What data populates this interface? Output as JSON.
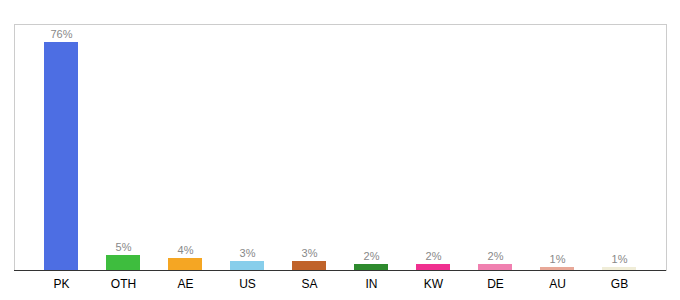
{
  "chart_data": {
    "type": "bar",
    "categories": [
      "PK",
      "OTH",
      "AE",
      "US",
      "SA",
      "IN",
      "KW",
      "DE",
      "AU",
      "GB"
    ],
    "values": [
      76,
      5,
      4,
      3,
      3,
      2,
      2,
      2,
      1,
      1
    ],
    "value_labels": [
      "76%",
      "5%",
      "4%",
      "3%",
      "3%",
      "2%",
      "2%",
      "2%",
      "1%",
      "1%"
    ],
    "colors": [
      "#4d6ee3",
      "#3ebd3e",
      "#f5a623",
      "#87ceeb",
      "#c0632a",
      "#2d8a2d",
      "#f03090",
      "#f080b0",
      "#e8a898",
      "#f0edd8"
    ],
    "ylim": [
      0,
      82
    ],
    "data_labels": true,
    "tick_labels": "x",
    "grid": false
  }
}
